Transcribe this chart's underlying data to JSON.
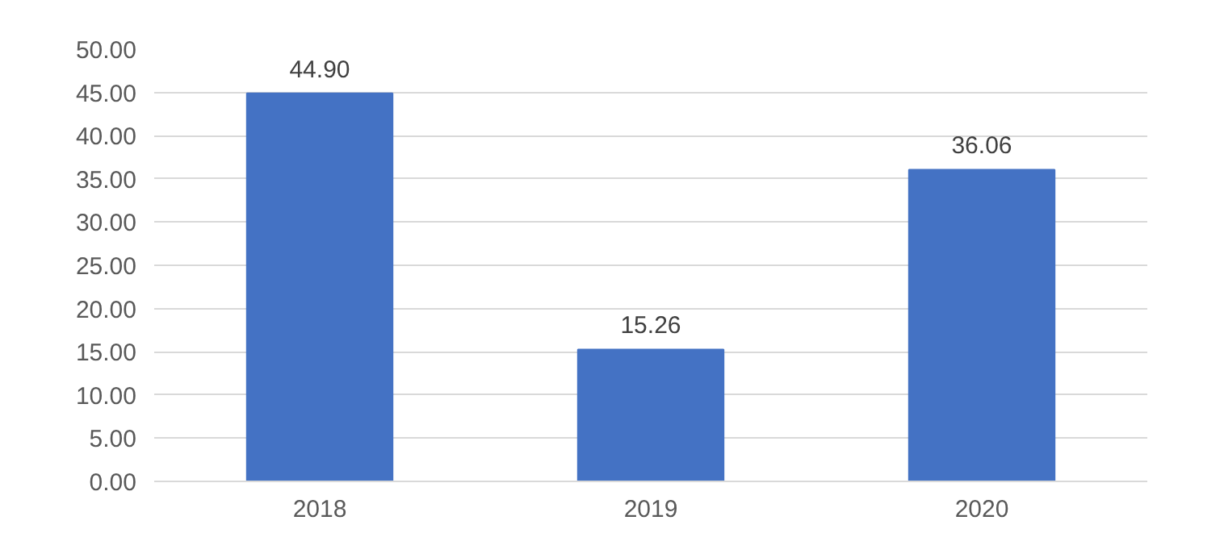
{
  "chart_data": {
    "type": "bar",
    "categories": [
      "2018",
      "2019",
      "2020"
    ],
    "values": [
      44.9,
      15.26,
      36.06
    ],
    "value_labels": [
      "44.90",
      "15.26",
      "36.06"
    ],
    "color": "#4472c4",
    "ylim": [
      0,
      50
    ],
    "yticks": [
      {
        "value": 0,
        "label": "0.00"
      },
      {
        "value": 5,
        "label": "5.00"
      },
      {
        "value": 10,
        "label": "10.00"
      },
      {
        "value": 15,
        "label": "15.00"
      },
      {
        "value": 20,
        "label": "20.00"
      },
      {
        "value": 25,
        "label": "25.00"
      },
      {
        "value": 30,
        "label": "30.00"
      },
      {
        "value": 35,
        "label": "35.00"
      },
      {
        "value": 40,
        "label": "40.00"
      },
      {
        "value": 45,
        "label": "45.00"
      },
      {
        "value": 50,
        "label": "50.00"
      }
    ],
    "grid": "y"
  }
}
